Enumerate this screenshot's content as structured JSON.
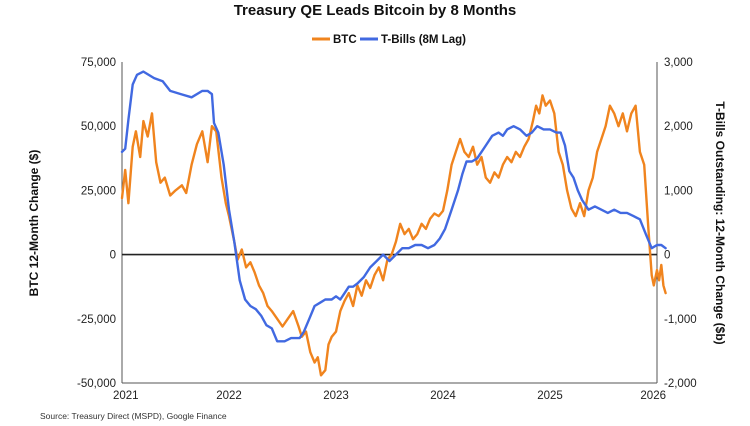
{
  "chart_data": {
    "type": "line",
    "title": "Treasury QE Leads Bitcoin by 8 Months",
    "ylabel": "BTC 12-Month Change ($)",
    "y2label": "T-Bills Outstanding: 12-Month Change ($b)",
    "source": "Source: Treasury Direct (MSPD), Google Finance",
    "legend_placement": "top-center",
    "grid": false,
    "xlim": [
      2021,
      2026
    ],
    "ylim": [
      -50000,
      75000
    ],
    "y2lim": [
      -2000,
      3000
    ],
    "x_tick_labels": [
      "2021",
      "2022",
      "2023",
      "2024",
      "2025",
      "2026"
    ],
    "x_ticks": [
      2021,
      2022,
      2023,
      2024,
      2025,
      2026
    ],
    "y_tick_labels": [
      "75,000",
      "50,000",
      "25,000",
      "0",
      "-25,000",
      "-50,000"
    ],
    "y_ticks": [
      75000,
      50000,
      25000,
      0,
      -25000,
      -50000
    ],
    "y2_tick_labels": [
      "3,000",
      "2,000",
      "1,000",
      "0",
      "-1,000",
      "-2,000"
    ],
    "y2_ticks": [
      3000,
      2000,
      1000,
      0,
      -1000,
      -2000
    ],
    "series": [
      {
        "name": "BTC",
        "axis": "left",
        "color": "#F0841E",
        "points": [
          [
            2021.0,
            22000
          ],
          [
            2021.03,
            33000
          ],
          [
            2021.06,
            20000
          ],
          [
            2021.1,
            42000
          ],
          [
            2021.13,
            48000
          ],
          [
            2021.17,
            38000
          ],
          [
            2021.2,
            52000
          ],
          [
            2021.24,
            46000
          ],
          [
            2021.28,
            55000
          ],
          [
            2021.32,
            36000
          ],
          [
            2021.36,
            28000
          ],
          [
            2021.4,
            30000
          ],
          [
            2021.45,
            23000
          ],
          [
            2021.5,
            25000
          ],
          [
            2021.56,
            27000
          ],
          [
            2021.6,
            24000
          ],
          [
            2021.65,
            35000
          ],
          [
            2021.7,
            43000
          ],
          [
            2021.75,
            48000
          ],
          [
            2021.8,
            36000
          ],
          [
            2021.84,
            50000
          ],
          [
            2021.88,
            48000
          ],
          [
            2021.93,
            30000
          ],
          [
            2021.97,
            20000
          ],
          [
            2022.0,
            15000
          ],
          [
            2022.05,
            5000
          ],
          [
            2022.08,
            -2000
          ],
          [
            2022.12,
            2000
          ],
          [
            2022.16,
            -5000
          ],
          [
            2022.2,
            -3000
          ],
          [
            2022.24,
            -7000
          ],
          [
            2022.28,
            -12000
          ],
          [
            2022.32,
            -15000
          ],
          [
            2022.36,
            -20000
          ],
          [
            2022.4,
            -22000
          ],
          [
            2022.45,
            -25000
          ],
          [
            2022.5,
            -28000
          ],
          [
            2022.55,
            -25000
          ],
          [
            2022.6,
            -22000
          ],
          [
            2022.65,
            -28000
          ],
          [
            2022.68,
            -32000
          ],
          [
            2022.72,
            -30000
          ],
          [
            2022.76,
            -38000
          ],
          [
            2022.8,
            -42000
          ],
          [
            2022.83,
            -40000
          ],
          [
            2022.86,
            -47000
          ],
          [
            2022.9,
            -45000
          ],
          [
            2022.93,
            -35000
          ],
          [
            2022.96,
            -32000
          ],
          [
            2023.0,
            -30000
          ],
          [
            2023.04,
            -22000
          ],
          [
            2023.08,
            -18000
          ],
          [
            2023.12,
            -15000
          ],
          [
            2023.16,
            -20000
          ],
          [
            2023.2,
            -12000
          ],
          [
            2023.24,
            -16000
          ],
          [
            2023.28,
            -10000
          ],
          [
            2023.32,
            -13000
          ],
          [
            2023.36,
            -8000
          ],
          [
            2023.4,
            -5000
          ],
          [
            2023.44,
            -10000
          ],
          [
            2023.48,
            -2000
          ],
          [
            2023.52,
            0
          ],
          [
            2023.56,
            5000
          ],
          [
            2023.6,
            12000
          ],
          [
            2023.64,
            8000
          ],
          [
            2023.68,
            10000
          ],
          [
            2023.72,
            6000
          ],
          [
            2023.76,
            8000
          ],
          [
            2023.8,
            12000
          ],
          [
            2023.84,
            10000
          ],
          [
            2023.88,
            14000
          ],
          [
            2023.92,
            16000
          ],
          [
            2023.96,
            15000
          ],
          [
            2024.0,
            17000
          ],
          [
            2024.04,
            25000
          ],
          [
            2024.08,
            35000
          ],
          [
            2024.12,
            40000
          ],
          [
            2024.16,
            45000
          ],
          [
            2024.2,
            40000
          ],
          [
            2024.24,
            38000
          ],
          [
            2024.28,
            42000
          ],
          [
            2024.32,
            35000
          ],
          [
            2024.36,
            38000
          ],
          [
            2024.4,
            30000
          ],
          [
            2024.44,
            28000
          ],
          [
            2024.48,
            32000
          ],
          [
            2024.52,
            30000
          ],
          [
            2024.56,
            35000
          ],
          [
            2024.6,
            38000
          ],
          [
            2024.64,
            36000
          ],
          [
            2024.68,
            40000
          ],
          [
            2024.72,
            38000
          ],
          [
            2024.76,
            42000
          ],
          [
            2024.8,
            45000
          ],
          [
            2024.84,
            52000
          ],
          [
            2024.87,
            58000
          ],
          [
            2024.9,
            55000
          ],
          [
            2024.93,
            62000
          ],
          [
            2024.96,
            58000
          ],
          [
            2025.0,
            60000
          ],
          [
            2025.04,
            55000
          ],
          [
            2025.08,
            40000
          ],
          [
            2025.12,
            35000
          ],
          [
            2025.16,
            25000
          ],
          [
            2025.2,
            18000
          ],
          [
            2025.24,
            15000
          ],
          [
            2025.28,
            20000
          ],
          [
            2025.32,
            15000
          ],
          [
            2025.36,
            25000
          ],
          [
            2025.4,
            30000
          ],
          [
            2025.44,
            40000
          ],
          [
            2025.48,
            45000
          ],
          [
            2025.52,
            50000
          ],
          [
            2025.56,
            58000
          ],
          [
            2025.6,
            55000
          ],
          [
            2025.64,
            50000
          ],
          [
            2025.68,
            55000
          ],
          [
            2025.72,
            48000
          ],
          [
            2025.76,
            55000
          ],
          [
            2025.8,
            58000
          ],
          [
            2025.84,
            40000
          ],
          [
            2025.88,
            35000
          ],
          [
            2025.92,
            10000
          ],
          [
            2025.95,
            -8000
          ],
          [
            2025.97,
            -12000
          ],
          [
            2026.0,
            -6000
          ],
          [
            2026.02,
            -10000
          ],
          [
            2026.04,
            -4000
          ],
          [
            2026.06,
            -12000
          ],
          [
            2026.08,
            -15000
          ]
        ]
      },
      {
        "name": "T-Bills (8M Lag)",
        "axis": "right",
        "color": "#4169E1",
        "points": [
          [
            2021.0,
            1600
          ],
          [
            2021.03,
            1650
          ],
          [
            2021.06,
            2100
          ],
          [
            2021.1,
            2650
          ],
          [
            2021.14,
            2800
          ],
          [
            2021.2,
            2850
          ],
          [
            2021.3,
            2750
          ],
          [
            2021.38,
            2700
          ],
          [
            2021.45,
            2550
          ],
          [
            2021.55,
            2500
          ],
          [
            2021.65,
            2450
          ],
          [
            2021.75,
            2550
          ],
          [
            2021.8,
            2550
          ],
          [
            2021.84,
            2500
          ],
          [
            2021.86,
            2050
          ],
          [
            2021.9,
            1900
          ],
          [
            2021.95,
            1400
          ],
          [
            2022.0,
            700
          ],
          [
            2022.05,
            200
          ],
          [
            2022.1,
            -400
          ],
          [
            2022.15,
            -700
          ],
          [
            2022.2,
            -800
          ],
          [
            2022.25,
            -850
          ],
          [
            2022.3,
            -950
          ],
          [
            2022.35,
            -1100
          ],
          [
            2022.4,
            -1150
          ],
          [
            2022.45,
            -1350
          ],
          [
            2022.52,
            -1350
          ],
          [
            2022.58,
            -1300
          ],
          [
            2022.66,
            -1300
          ],
          [
            2022.7,
            -1200
          ],
          [
            2022.75,
            -1000
          ],
          [
            2022.8,
            -800
          ],
          [
            2022.85,
            -750
          ],
          [
            2022.9,
            -700
          ],
          [
            2022.96,
            -700
          ],
          [
            2023.0,
            -650
          ],
          [
            2023.04,
            -700
          ],
          [
            2023.08,
            -600
          ],
          [
            2023.12,
            -500
          ],
          [
            2023.16,
            -500
          ],
          [
            2023.2,
            -450
          ],
          [
            2023.26,
            -350
          ],
          [
            2023.32,
            -200
          ],
          [
            2023.38,
            -100
          ],
          [
            2023.44,
            0
          ],
          [
            2023.5,
            -100
          ],
          [
            2023.56,
            0
          ],
          [
            2023.62,
            100
          ],
          [
            2023.68,
            100
          ],
          [
            2023.74,
            150
          ],
          [
            2023.8,
            150
          ],
          [
            2023.86,
            100
          ],
          [
            2023.92,
            150
          ],
          [
            2023.97,
            250
          ],
          [
            2024.02,
            400
          ],
          [
            2024.08,
            700
          ],
          [
            2024.14,
            1000
          ],
          [
            2024.18,
            1250
          ],
          [
            2024.22,
            1450
          ],
          [
            2024.27,
            1450
          ],
          [
            2024.32,
            1500
          ],
          [
            2024.36,
            1600
          ],
          [
            2024.4,
            1700
          ],
          [
            2024.46,
            1850
          ],
          [
            2024.52,
            1900
          ],
          [
            2024.56,
            1850
          ],
          [
            2024.6,
            1950
          ],
          [
            2024.66,
            2000
          ],
          [
            2024.72,
            1950
          ],
          [
            2024.78,
            1850
          ],
          [
            2024.83,
            1900
          ],
          [
            2024.88,
            2000
          ],
          [
            2024.94,
            1950
          ],
          [
            2025.0,
            1950
          ],
          [
            2025.06,
            1900
          ],
          [
            2025.1,
            1900
          ],
          [
            2025.14,
            1700
          ],
          [
            2025.18,
            1300
          ],
          [
            2025.22,
            1200
          ],
          [
            2025.26,
            1000
          ],
          [
            2025.3,
            850
          ],
          [
            2025.36,
            700
          ],
          [
            2025.42,
            750
          ],
          [
            2025.48,
            700
          ],
          [
            2025.54,
            650
          ],
          [
            2025.6,
            700
          ],
          [
            2025.66,
            650
          ],
          [
            2025.72,
            650
          ],
          [
            2025.78,
            600
          ],
          [
            2025.84,
            550
          ],
          [
            2025.9,
            300
          ],
          [
            2025.95,
            100
          ],
          [
            2026.0,
            150
          ],
          [
            2026.04,
            150
          ],
          [
            2026.08,
            100
          ]
        ]
      }
    ]
  }
}
